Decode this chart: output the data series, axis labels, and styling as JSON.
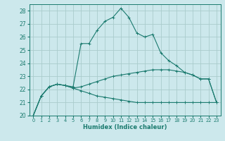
{
  "xlabel": "Humidex (Indice chaleur)",
  "bg_color": "#cce8ec",
  "grid_color": "#aacccc",
  "line_color": "#1a7a6e",
  "xlim": [
    -0.5,
    23.5
  ],
  "ylim": [
    20,
    28.5
  ],
  "yticks": [
    20,
    21,
    22,
    23,
    24,
    25,
    26,
    27,
    28
  ],
  "xticks": [
    0,
    1,
    2,
    3,
    4,
    5,
    6,
    7,
    8,
    9,
    10,
    11,
    12,
    13,
    14,
    15,
    16,
    17,
    18,
    19,
    20,
    21,
    22,
    23
  ],
  "series": [
    {
      "x": [
        0,
        1,
        2,
        3,
        4,
        5,
        6,
        7,
        8,
        9,
        10,
        11,
        12,
        13,
        14,
        15,
        16,
        17,
        18,
        19,
        20,
        21,
        22,
        23
      ],
      "y": [
        20.0,
        21.5,
        22.2,
        22.4,
        22.3,
        22.2,
        25.5,
        25.5,
        26.5,
        27.2,
        27.5,
        28.2,
        27.5,
        26.3,
        26.0,
        26.2,
        24.8,
        24.2,
        23.8,
        23.3,
        23.1,
        22.8,
        22.8,
        21.0
      ]
    },
    {
      "x": [
        0,
        1,
        2,
        3,
        4,
        5,
        6,
        7,
        8,
        9,
        10,
        11,
        12,
        13,
        14,
        15,
        16,
        17,
        18,
        19,
        20,
        21,
        22,
        23
      ],
      "y": [
        20.0,
        21.5,
        22.2,
        22.4,
        22.3,
        22.1,
        22.2,
        22.4,
        22.6,
        22.8,
        23.0,
        23.1,
        23.2,
        23.3,
        23.4,
        23.5,
        23.5,
        23.5,
        23.4,
        23.3,
        23.1,
        22.8,
        22.8,
        21.0
      ]
    },
    {
      "x": [
        0,
        1,
        2,
        3,
        4,
        5,
        6,
        7,
        8,
        9,
        10,
        11,
        12,
        13,
        14,
        15,
        16,
        17,
        18,
        19,
        20,
        21,
        22,
        23
      ],
      "y": [
        20.0,
        21.5,
        22.2,
        22.4,
        22.3,
        22.1,
        21.9,
        21.7,
        21.5,
        21.4,
        21.3,
        21.2,
        21.1,
        21.0,
        21.0,
        21.0,
        21.0,
        21.0,
        21.0,
        21.0,
        21.0,
        21.0,
        21.0,
        21.0
      ]
    }
  ]
}
